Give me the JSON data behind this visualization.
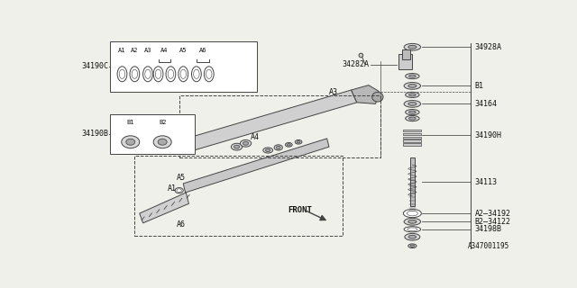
{
  "bg_color": "#f0f0eb",
  "line_color": "#444444",
  "text_color": "#111111",
  "part_number_label": "A347001195",
  "inset_c_label": "34190C",
  "inset_b_label": "34190B",
  "front_label": "FRONT",
  "labels_c": [
    "A1",
    "A2",
    "A3",
    "A4",
    "A5",
    "A6"
  ],
  "labels_b": [
    "B1",
    "B2"
  ]
}
